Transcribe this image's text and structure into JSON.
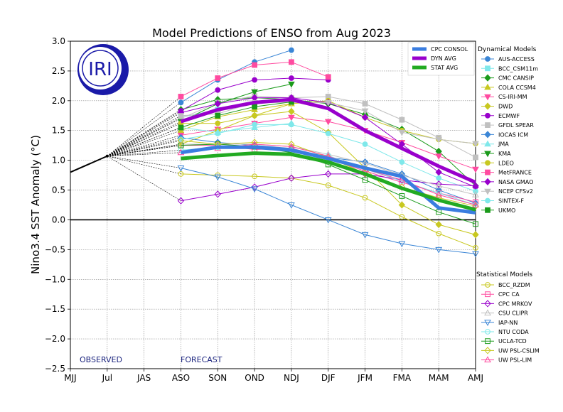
{
  "chart_data": {
    "type": "line",
    "title": "Model Predictions of ENSO from Aug 2023",
    "ylabel": "Nino3.4 SST Anomaly (°C)",
    "xlabel": "",
    "categories": [
      "MJJ",
      "Jul",
      "JAS",
      "ASO",
      "SON",
      "OND",
      "NDJ",
      "DJF",
      "JFM",
      "FMA",
      "MAM",
      "AMJ"
    ],
    "yticks": [
      "3.0",
      "2.5",
      "2.0",
      "1.5",
      "1.0",
      "0.5",
      "0.0",
      "−0.5",
      "−1.0",
      "−1.5",
      "−2.0",
      "−2.5"
    ],
    "ylim": [
      -2.5,
      3.0
    ],
    "grid": true,
    "observed_label": "OBSERVED",
    "forecast_label": "FORECAST",
    "logo_text": "IRI",
    "observed": {
      "x": [
        0,
        1
      ],
      "values": [
        0.8,
        1.07
      ]
    },
    "summary_series": [
      {
        "name": "CPC CONSOL",
        "color": "#3a7de0",
        "values": [
          1.13,
          1.22,
          1.22,
          1.17,
          1.03,
          0.87,
          0.73,
          0.2,
          0.12
        ]
      },
      {
        "name": "DYN AVG",
        "color": "#9900cc",
        "values": [
          1.65,
          1.85,
          1.97,
          2.02,
          1.87,
          1.5,
          1.2,
          0.9,
          0.63
        ]
      },
      {
        "name": "STAT AVG",
        "color": "#22aa22",
        "values": [
          1.03,
          1.08,
          1.12,
          1.1,
          0.97,
          0.77,
          0.53,
          0.33,
          0.17
        ]
      }
    ],
    "dynamical_legend_title": "Dynamical Models",
    "statistical_legend_title": "Statistical Models",
    "dynamical_models": [
      {
        "name": "AUS-ACCESS",
        "color": "#3b86d6",
        "marker": "circle",
        "filled": true,
        "values": [
          1.97,
          2.35,
          2.65,
          2.85
        ]
      },
      {
        "name": "BCC_CSM11m",
        "color": "#7fe8ea",
        "marker": "square",
        "filled": true,
        "values": [
          1.72,
          1.85,
          1.95,
          2.0
        ]
      },
      {
        "name": "CMC CANSIP",
        "color": "#1a9a1a",
        "marker": "diamond",
        "filled": true,
        "values": [
          1.85,
          2.02,
          2.05,
          2.02,
          1.95,
          1.77,
          1.52,
          1.15,
          0.57
        ]
      },
      {
        "name": "COLA CCSM4",
        "color": "#c8c820",
        "marker": "triangle-up",
        "filled": true,
        "values": [
          1.5,
          1.73,
          1.85,
          1.95
        ]
      },
      {
        "name": "CS-IRI-MM",
        "color": "#ff4ba0",
        "marker": "triangle-down",
        "filled": true,
        "values": [
          1.42,
          1.52,
          1.62,
          1.72,
          1.65,
          1.5,
          1.3,
          1.07,
          0.85
        ]
      },
      {
        "name": "DWD",
        "color": "#c8c820",
        "marker": "diamond",
        "filled": true,
        "values": [
          1.27,
          1.5,
          1.75,
          1.82,
          1.47,
          0.87,
          0.25,
          -0.08,
          -0.25
        ]
      },
      {
        "name": "ECMWF",
        "color": "#9900cc",
        "marker": "circle",
        "filled": true,
        "values": [
          1.83,
          2.18,
          2.35,
          2.38,
          2.35
        ]
      },
      {
        "name": "GFDL SPEAR",
        "color": "#c0c0c0",
        "marker": "square",
        "filled": true,
        "values": [
          1.7,
          1.97,
          2.08,
          2.05,
          2.07,
          1.95,
          1.68,
          1.38,
          1.05
        ]
      },
      {
        "name": "IOCAS ICM",
        "color": "#3b86d6",
        "marker": "diamond",
        "filled": true,
        "values": [
          1.38,
          1.3,
          1.25,
          1.2,
          1.05,
          0.97,
          0.77,
          0.5,
          0.28
        ]
      },
      {
        "name": "JMA",
        "color": "#7fe8ea",
        "marker": "triangle-up",
        "filled": true,
        "values": [
          1.55,
          1.47,
          1.55,
          1.62
        ]
      },
      {
        "name": "KMA",
        "color": "#1a9a1a",
        "marker": "triangle-down",
        "filled": true,
        "values": [
          1.65,
          1.95,
          2.15,
          2.28
        ]
      },
      {
        "name": "LDEO",
        "color": "#c8c820",
        "marker": "circle",
        "filled": true,
        "values": [
          1.62,
          1.62,
          1.75,
          1.95,
          2.0,
          1.72,
          1.5,
          1.35,
          1.28
        ]
      },
      {
        "name": "MetFRANCE",
        "color": "#ff4ba0",
        "marker": "square",
        "filled": true,
        "values": [
          2.07,
          2.38,
          2.6,
          2.65,
          2.4
        ]
      },
      {
        "name": "NASA GMAO",
        "color": "#9900cc",
        "marker": "diamond",
        "filled": true,
        "values": [
          1.8,
          1.95,
          2.05,
          2.05,
          1.97,
          1.72,
          1.27,
          0.8,
          0.55
        ]
      },
      {
        "name": "NCEP CFSv2",
        "color": "#c0c0c0",
        "marker": "triangle-down",
        "filled": true,
        "values": [
          1.75,
          1.78,
          1.97,
          1.97,
          1.97,
          1.83,
          1.47,
          1.35,
          1.28
        ]
      },
      {
        "name": "SINTEX-F",
        "color": "#7fe8ea",
        "marker": "circle",
        "filled": true,
        "values": [
          1.35,
          1.45,
          1.6,
          1.6,
          1.45,
          1.27,
          0.97,
          0.7,
          0.48
        ]
      },
      {
        "name": "UKMO",
        "color": "#1a9a1a",
        "marker": "square",
        "filled": true,
        "values": [
          1.55,
          1.75,
          1.9,
          1.98
        ]
      }
    ],
    "statistical_models": [
      {
        "name": "BCC_RZDM",
        "color": "#c8c820",
        "marker": "circle",
        "filled": false,
        "values": [
          0.77,
          0.75,
          0.73,
          0.7,
          0.58,
          0.37,
          0.05,
          -0.23,
          -0.47
        ]
      },
      {
        "name": "CPC CA",
        "color": "#ff4ba0",
        "marker": "square",
        "filled": false,
        "values": [
          1.25,
          1.25,
          1.18,
          1.2,
          1.02,
          0.82,
          0.63,
          0.45,
          0.3
        ]
      },
      {
        "name": "CPC MRKOV",
        "color": "#9900cc",
        "marker": "diamond",
        "filled": false,
        "values": [
          0.32,
          0.43,
          0.55,
          0.7,
          0.77,
          0.77,
          0.67,
          0.6,
          0.57
        ]
      },
      {
        "name": "CSU CLIPR",
        "color": "#c0c0c0",
        "marker": "triangle-up",
        "filled": false,
        "values": [
          1.27,
          1.27,
          1.27,
          1.23,
          1.1,
          0.95,
          0.75,
          0.57,
          0.42
        ]
      },
      {
        "name": "IAP-NN",
        "color": "#3b86d6",
        "marker": "triangle-down",
        "filled": false,
        "values": [
          0.87,
          0.72,
          0.52,
          0.25,
          0.0,
          -0.25,
          -0.4,
          -0.5,
          -0.57
        ]
      },
      {
        "name": "NTU CODA",
        "color": "#7fe8ea",
        "marker": "circle",
        "filled": false,
        "values": [
          1.17,
          1.22,
          1.22,
          1.17,
          1.08,
          0.85,
          0.65,
          0.45,
          0.25
        ]
      },
      {
        "name": "UCLA-TCD",
        "color": "#1a9a1a",
        "marker": "square",
        "filled": false,
        "values": [
          1.25,
          1.27,
          1.23,
          1.13,
          0.93,
          0.67,
          0.4,
          0.13,
          -0.07
        ]
      },
      {
        "name": "UW PSL-CSLIM",
        "color": "#c8c820",
        "marker": "diamond",
        "filled": false,
        "values": [
          1.33,
          1.27,
          1.3,
          1.27,
          1.05,
          0.78,
          0.55,
          0.37,
          0.23
        ]
      },
      {
        "name": "UW PSL-LIM",
        "color": "#ff4ba0",
        "marker": "triangle-up",
        "filled": false,
        "values": [
          1.13,
          1.2,
          1.27,
          1.23,
          1.07,
          0.85,
          0.67,
          0.42,
          0.25
        ]
      }
    ]
  }
}
